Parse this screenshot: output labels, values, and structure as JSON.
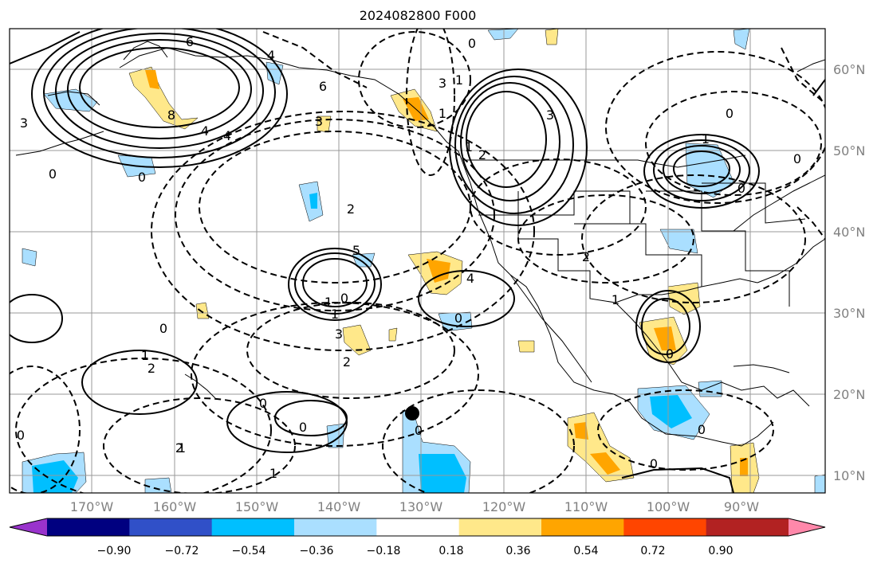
{
  "title": "2024082800 F000",
  "lat_labels": [
    "60°N",
    "50°N",
    "40°N",
    "30°N",
    "20°N",
    "10°N"
  ],
  "lon_labels": [
    "170°W",
    "160°W",
    "150°W",
    "140°W",
    "130°W",
    "120°W",
    "110°W",
    "100°W",
    "90°W"
  ],
  "colorbar": {
    "colors": [
      "#9933cc",
      "#000080",
      "#3050c8",
      "#00bfff",
      "#aadfff",
      "#ffffff",
      "#ffe88a",
      "#ffa500",
      "#ff4500",
      "#b22222",
      "#ff88aa"
    ],
    "labels": [
      "−0.90",
      "−0.72",
      "−0.54",
      "−0.36",
      "−0.18",
      "0.18",
      "0.36",
      "0.54",
      "0.72",
      "0.90"
    ]
  },
  "contour_labels": [
    "6",
    "8",
    "4",
    "0",
    "0",
    "3",
    "4",
    "6",
    "3",
    "4",
    "5",
    "0",
    "1",
    "3",
    "2",
    "1",
    "4",
    "0",
    "0",
    "1",
    "2",
    "3",
    "2",
    "1",
    "0",
    "0",
    "0",
    "0",
    "1",
    "1",
    "2",
    "3",
    "1",
    "0",
    "2",
    "1",
    "0",
    "1",
    "2",
    "0",
    "0",
    "1",
    "0",
    "0",
    "0"
  ],
  "colors": {
    "frame": "#000000",
    "grid": "#999999",
    "blue_fill": "#aadfff",
    "dark_blue_fill": "#00bfff",
    "yellow_fill": "#ffe88a",
    "orange_fill": "#ffa500"
  }
}
